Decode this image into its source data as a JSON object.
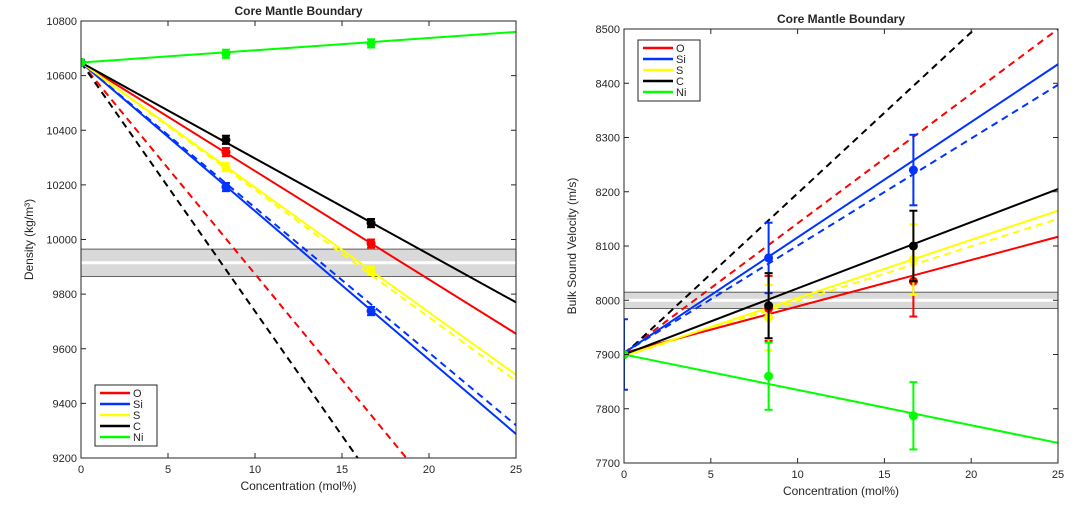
{
  "chart_data": [
    {
      "type": "line",
      "title": "Core Mantle Boundary",
      "xlabel": "Concentration (mol%)",
      "ylabel": "Density (kg/m³)",
      "xlim": [
        0,
        25
      ],
      "ylim": [
        9200,
        10800
      ],
      "xticks": [
        0,
        5,
        10,
        15,
        20,
        25
      ],
      "yticks": [
        9200,
        9400,
        9600,
        9800,
        10000,
        10200,
        10400,
        10600,
        10800
      ],
      "grid": false,
      "legend_position": "bottom-left",
      "reference_band": {
        "y_low": 9865,
        "y_mid": 9915,
        "y_high": 9965,
        "color": "#d9d9d9",
        "mid_color": "#ffffff"
      },
      "series": [
        {
          "name": "O",
          "color": "#ff0000",
          "solid": [
            [
              0,
              10648
            ],
            [
              25,
              9655
            ]
          ],
          "dashed": [
            [
              0,
              10648
            ],
            [
              18.7,
              9200
            ]
          ],
          "points": [
            [
              0,
              10648
            ],
            [
              8.33,
              10320
            ],
            [
              16.67,
              9985
            ]
          ],
          "error": [
            0,
            15,
            15
          ]
        },
        {
          "name": "Si",
          "color": "#0033ff",
          "solid": [
            [
              0,
              10648
            ],
            [
              25,
              9288
            ]
          ],
          "dashed": [
            [
              0,
              10648
            ],
            [
              25,
              9320
            ]
          ],
          "points": [
            [
              0,
              10648
            ],
            [
              8.33,
              10192
            ],
            [
              16.67,
              9738
            ]
          ],
          "error": [
            10,
            15,
            15
          ]
        },
        {
          "name": "S",
          "color": "#ffff00",
          "solid": [
            [
              0,
              10648
            ],
            [
              25,
              9505
            ]
          ],
          "dashed": [
            [
              0,
              10648
            ],
            [
              25,
              9482
            ]
          ],
          "points": [
            [
              0,
              10648
            ],
            [
              8.33,
              10265
            ],
            [
              16.67,
              9885
            ]
          ],
          "error": [
            0,
            15,
            15
          ]
        },
        {
          "name": "C",
          "color": "#000000",
          "solid": [
            [
              0,
              10648
            ],
            [
              25,
              9770
            ]
          ],
          "dashed": [
            [
              0,
              10648
            ],
            [
              15.9,
              9200
            ]
          ],
          "points": [
            [
              0,
              10648
            ],
            [
              8.33,
              10365
            ],
            [
              16.67,
              10060
            ]
          ],
          "error": [
            0,
            15,
            15
          ]
        },
        {
          "name": "Ni",
          "color": "#00ff00",
          "solid": [
            [
              0,
              10648
            ],
            [
              25,
              10760
            ]
          ],
          "dashed": [],
          "points": [
            [
              0,
              10648
            ],
            [
              8.33,
              10680
            ],
            [
              16.67,
              10718
            ]
          ],
          "error": [
            0,
            15,
            15
          ]
        }
      ]
    },
    {
      "type": "line",
      "title": "Core Mantle Boundary",
      "xlabel": "Concentration (mol%)",
      "ylabel": "Bulk Sound Velocity (m/s)",
      "xlim": [
        0,
        25
      ],
      "ylim": [
        7700,
        8500
      ],
      "xticks": [
        0,
        5,
        10,
        15,
        20,
        25
      ],
      "yticks": [
        7700,
        7800,
        7900,
        8000,
        8100,
        8200,
        8300,
        8400,
        8500
      ],
      "grid": false,
      "legend_position": "top-left",
      "reference_band": {
        "y_low": 7985,
        "y_mid": 8000,
        "y_high": 8015,
        "color": "#d9d9d9",
        "mid_color": "#ffffff"
      },
      "series": [
        {
          "name": "O",
          "color": "#ff0000",
          "solid": [
            [
              0,
              7903
            ],
            [
              25,
              8117
            ]
          ],
          "dashed": [
            [
              0,
              7903
            ],
            [
              25,
              8500
            ]
          ],
          "points": [
            [
              0,
              7900
            ],
            [
              8.33,
              7985
            ],
            [
              16.67,
              8035
            ]
          ],
          "error": [
            0,
            60,
            65
          ]
        },
        {
          "name": "Si",
          "color": "#0033ff",
          "solid": [
            [
              0,
              7903
            ],
            [
              25,
              8435
            ]
          ],
          "dashed": [
            [
              0,
              7903
            ],
            [
              25,
              8397
            ]
          ],
          "points": [
            [
              0,
              7900
            ],
            [
              8.33,
              8078
            ],
            [
              16.67,
              8240
            ]
          ],
          "error": [
            65,
            65,
            65
          ]
        },
        {
          "name": "S",
          "color": "#ffff00",
          "solid": [
            [
              0,
              7897
            ],
            [
              25,
              8165
            ]
          ],
          "dashed": [
            [
              0,
              7897
            ],
            [
              25,
              8150
            ]
          ],
          "points": [
            [
              0,
              7900
            ],
            [
              8.33,
              7968
            ],
            [
              16.67,
              8075
            ]
          ],
          "error": [
            0,
            60,
            65
          ]
        },
        {
          "name": "C",
          "color": "#000000",
          "solid": [
            [
              0,
              7900
            ],
            [
              25,
              8205
            ]
          ],
          "dashed": [
            [
              0,
              7900
            ],
            [
              20.2,
              8500
            ]
          ],
          "points": [
            [
              0,
              7900
            ],
            [
              8.33,
              7990
            ],
            [
              16.67,
              8100
            ]
          ],
          "error": [
            0,
            60,
            65
          ]
        },
        {
          "name": "Ni",
          "color": "#00ff00",
          "solid": [
            [
              0,
              7900
            ],
            [
              25,
              7737
            ]
          ],
          "dashed": [],
          "points": [
            [
              0,
              7900
            ],
            [
              8.33,
              7860
            ],
            [
              16.67,
              7787
            ]
          ],
          "error": [
            0,
            62,
            62
          ]
        }
      ]
    }
  ]
}
